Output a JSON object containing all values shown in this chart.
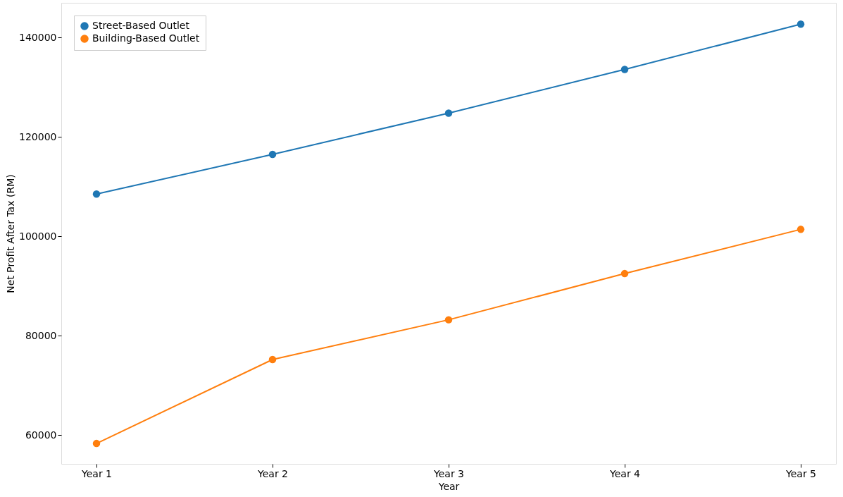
{
  "chart_data": {
    "type": "line",
    "xlabel": "Year",
    "ylabel": "Net Profit After Tax (RM)",
    "categories": [
      "Year 1",
      "Year 2",
      "Year 3",
      "Year 4",
      "Year 5"
    ],
    "series": [
      {
        "name": "Street-Based Outlet",
        "color": "#1f77b4",
        "values": [
          108500,
          116500,
          124800,
          133600,
          142700
        ]
      },
      {
        "name": "Building-Based Outlet",
        "color": "#ff7f0e",
        "values": [
          58300,
          75200,
          83200,
          92500,
          101400
        ]
      }
    ],
    "ylim": [
      54200,
      147000
    ],
    "yticks": [
      60000,
      80000,
      100000,
      120000,
      140000
    ],
    "grid": false,
    "legend": "top left",
    "marker": "circle",
    "line_style": "solid"
  }
}
